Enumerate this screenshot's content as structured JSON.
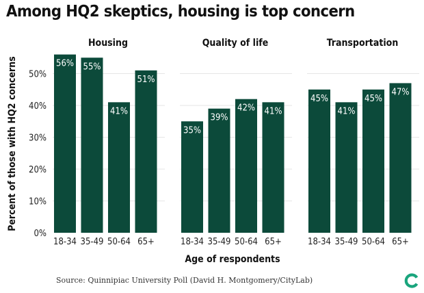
{
  "title": "Among HQ2 skeptics, housing is top concern",
  "source": "Source: Quinnipiac University Poll (David H. Montgomery/CityLab)",
  "colors": {
    "bar": "#0c4a3a",
    "grid": "#e6e6e6",
    "logo": "#1aa57d"
  },
  "chart_data": {
    "type": "bar",
    "xlabel": "Age of respondents",
    "ylabel": "Percent of those with HQ2 concerns",
    "ylim": [
      0,
      60
    ],
    "yticks": [
      0,
      10,
      20,
      30,
      40,
      50
    ],
    "ytick_labels": [
      "0%",
      "10%",
      "20%",
      "30%",
      "40%",
      "50%"
    ],
    "categories": [
      "18-34",
      "35-49",
      "50-64",
      "65+"
    ],
    "panels": [
      {
        "title": "Housing",
        "values": [
          56,
          55,
          41,
          51
        ],
        "labels": [
          "56%",
          "55%",
          "41%",
          "51%"
        ]
      },
      {
        "title": "Quality of life",
        "values": [
          35,
          39,
          42,
          41
        ],
        "labels": [
          "35%",
          "39%",
          "42%",
          "41%"
        ]
      },
      {
        "title": "Transportation",
        "values": [
          45,
          41,
          45,
          47
        ],
        "labels": [
          "45%",
          "41%",
          "45%",
          "47%"
        ]
      }
    ],
    "grid": true,
    "legend": "none"
  }
}
